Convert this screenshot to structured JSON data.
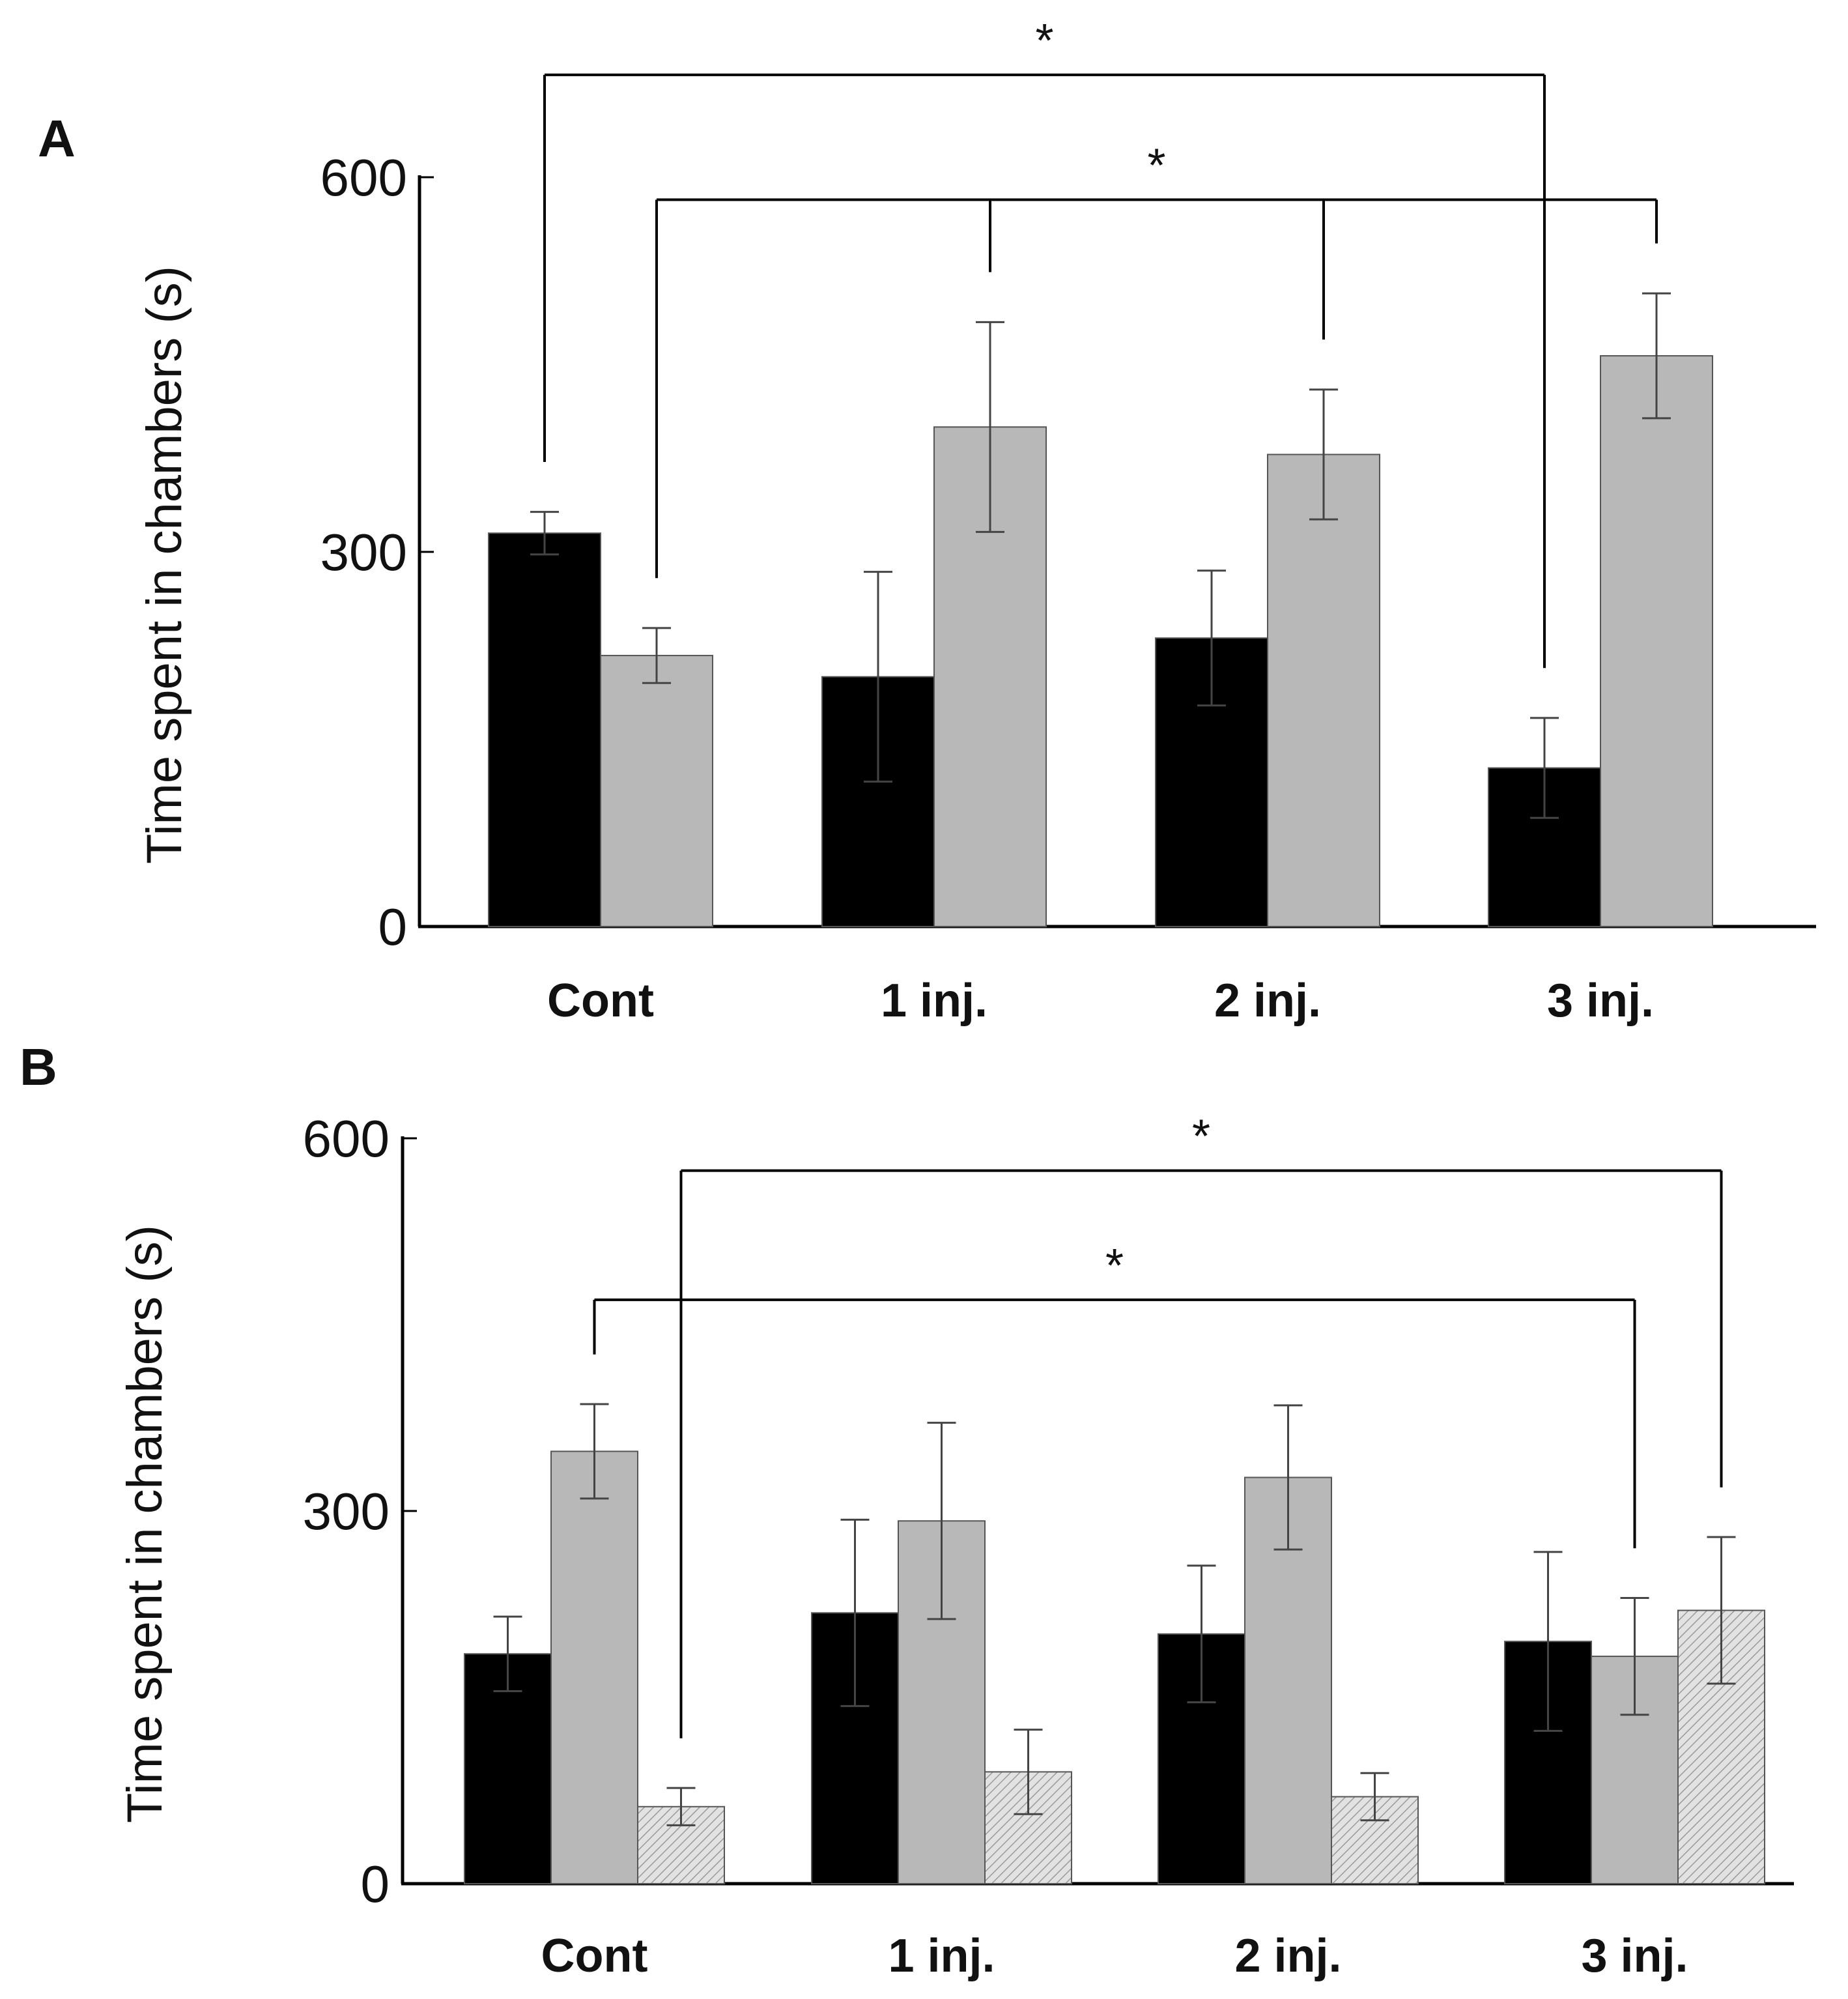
{
  "chart_data": [
    {
      "panel": "A",
      "type": "bar",
      "ylabel": "Time spent in chambers (s)",
      "ylim": [
        0,
        600
      ],
      "yticks": [
        0,
        300,
        600
      ],
      "categories": [
        "Cont",
        "1 inj.",
        "2 inj.",
        "3 inj."
      ],
      "series": [
        {
          "name": "black",
          "color": "#000000",
          "values": [
            315,
            200,
            231,
            127
          ],
          "errors": [
            17,
            84,
            54,
            40
          ]
        },
        {
          "name": "gray",
          "color": "#b8b8b8",
          "values": [
            217,
            400,
            378,
            457
          ],
          "errors": [
            22,
            84,
            52,
            50
          ]
        }
      ],
      "significance": [
        {
          "label": "*",
          "from": {
            "category": 0,
            "series": 0
          },
          "to": {
            "category": 3,
            "series": 0
          },
          "level": 682
        },
        {
          "label": "*",
          "from": {
            "category": 0,
            "series": 1
          },
          "to": [
            {
              "category": 1,
              "series": 1
            },
            {
              "category": 2,
              "series": 1
            },
            {
              "category": 3,
              "series": 1
            }
          ],
          "level": 582
        }
      ]
    },
    {
      "panel": "B",
      "type": "bar",
      "ylabel": "Time spent in chambers (s)",
      "ylim": [
        0,
        600
      ],
      "yticks": [
        0,
        300,
        600
      ],
      "categories": [
        "Cont",
        "1 inj.",
        "2 inj.",
        "3 inj."
      ],
      "series": [
        {
          "name": "black",
          "color": "#000000",
          "values": [
            185,
            218,
            201,
            195
          ],
          "errors": [
            30,
            75,
            55,
            72
          ]
        },
        {
          "name": "gray",
          "color": "#b8b8b8",
          "values": [
            348,
            292,
            327,
            183
          ],
          "errors": [
            38,
            79,
            58,
            47
          ]
        },
        {
          "name": "hatched",
          "color": "#d8d8d8",
          "values": [
            62,
            90,
            70,
            220
          ],
          "errors": [
            15,
            34,
            19,
            59
          ]
        }
      ],
      "significance": [
        {
          "label": "*",
          "from": {
            "category": 0,
            "series": 2
          },
          "to": {
            "category": 3,
            "series": 2
          },
          "level": 574
        },
        {
          "label": "*",
          "from": {
            "category": 0,
            "series": 1
          },
          "to": {
            "category": 3,
            "series": 1
          },
          "level": 470
        }
      ]
    }
  ]
}
